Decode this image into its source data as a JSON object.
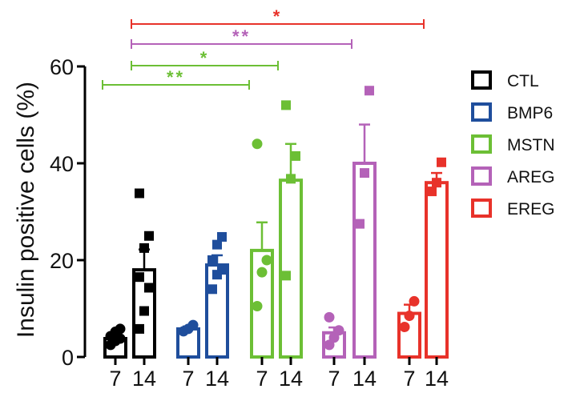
{
  "chart_data": {
    "type": "bar",
    "ylabel": "Insulin positive cells (%)",
    "ylim": [
      0,
      60
    ],
    "yticks": [
      0,
      20,
      40,
      60
    ],
    "grid": false,
    "legend_position": "right",
    "timepoints": [
      "7",
      "14"
    ],
    "series": [
      {
        "name": "CTL",
        "color": "#000000",
        "bars": [
          {
            "x": "7",
            "mean": 3.8,
            "sem": 0.6,
            "points": [
              2.5,
              3.3,
              3.8,
              4.3,
              5.2,
              5.8
            ]
          },
          {
            "x": "14",
            "mean": 18.0,
            "sem": 4.2,
            "points": [
              5.8,
              9.5,
              14.3,
              16.5,
              22.5,
              25.0,
              33.8
            ]
          }
        ]
      },
      {
        "name": "BMP6",
        "color": "#1f4e9c",
        "bars": [
          {
            "x": "7",
            "mean": 5.8,
            "sem": 0.5,
            "points": [
              5.3,
              5.8,
              6.6
            ]
          },
          {
            "x": "14",
            "mean": 19.0,
            "sem": 2.0,
            "points": [
              14.0,
              17.0,
              18.0,
              20.0,
              23.2,
              24.8
            ]
          }
        ]
      },
      {
        "name": "MSTN",
        "color": "#6cbf35",
        "bars": [
          {
            "x": "7",
            "mean": 22.0,
            "sem": 5.8,
            "points": [
              10.5,
              17.5,
              20.0,
              44.0
            ]
          },
          {
            "x": "14",
            "mean": 36.5,
            "sem": 7.5,
            "points": [
              16.8,
              36.8,
              41.5,
              52.0
            ]
          }
        ]
      },
      {
        "name": "AREG",
        "color": "#b462b8",
        "bars": [
          {
            "x": "7",
            "mean": 5.0,
            "sem": 1.1,
            "points": [
              2.5,
              4.0,
              5.5,
              8.2
            ]
          },
          {
            "x": "14",
            "mean": 40.0,
            "sem": 8.0,
            "points": [
              27.5,
              38.0,
              55.0
            ]
          }
        ]
      },
      {
        "name": "EREG",
        "color": "#e8322a",
        "bars": [
          {
            "x": "7",
            "mean": 9.0,
            "sem": 1.8,
            "points": [
              6.2,
              8.5,
              11.5
            ]
          },
          {
            "x": "14",
            "mean": 36.0,
            "sem": 2.0,
            "points": [
              34.2,
              36.0,
              40.2
            ]
          }
        ]
      }
    ],
    "significance": [
      {
        "label": "**",
        "color": "#6cbf35",
        "from": "CTL 7",
        "to": "MSTN 7"
      },
      {
        "label": "*",
        "color": "#6cbf35",
        "from": "CTL 14",
        "to": "MSTN 14"
      },
      {
        "label": "**",
        "color": "#b462b8",
        "from": "CTL 14",
        "to": "AREG 14"
      },
      {
        "label": "*",
        "color": "#e8322a",
        "from": "CTL 14",
        "to": "EREG 14"
      }
    ]
  }
}
